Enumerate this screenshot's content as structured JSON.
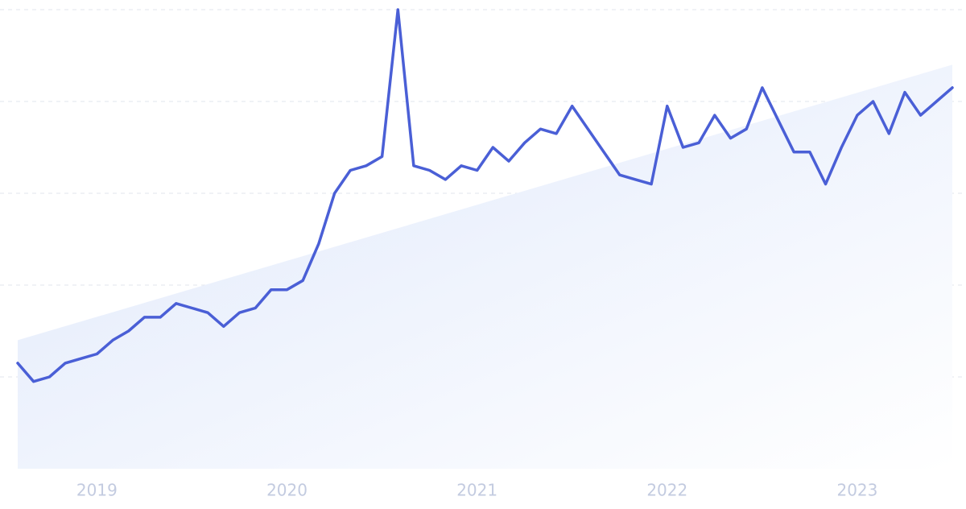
{
  "chart_data": {
    "type": "line",
    "categories": [
      null,
      null,
      null,
      null,
      null,
      "2019",
      null,
      null,
      null,
      null,
      null,
      null,
      null,
      null,
      null,
      null,
      null,
      "2020",
      null,
      null,
      null,
      null,
      null,
      null,
      null,
      null,
      null,
      null,
      null,
      "2021",
      null,
      null,
      null,
      null,
      null,
      null,
      null,
      null,
      null,
      null,
      null,
      "2022",
      null,
      null,
      null,
      null,
      null,
      null,
      null,
      null,
      null,
      null,
      null,
      "2023",
      null,
      null,
      null,
      null,
      null,
      null
    ],
    "series": [
      {
        "color": "#4a5fd6",
        "values": [
          23,
          19,
          20,
          23,
          24,
          25,
          28,
          30,
          33,
          33,
          36,
          35,
          34,
          31,
          34,
          35,
          39,
          39,
          41,
          49,
          60,
          65,
          66,
          68,
          100,
          66,
          65,
          63,
          66,
          65,
          70,
          67,
          71,
          74,
          73,
          79,
          74,
          69,
          64,
          63,
          62,
          79,
          70,
          71,
          77,
          72,
          74,
          83,
          76,
          69,
          69,
          62,
          70,
          77,
          80,
          73,
          82,
          77,
          80,
          83
        ]
      }
    ],
    "trend": [
      28,
      88
    ],
    "trend_color": "#dfe8fb",
    "ylim": [
      0,
      100
    ],
    "yticks": [
      20,
      40,
      60,
      80,
      100
    ],
    "grid": true
  }
}
